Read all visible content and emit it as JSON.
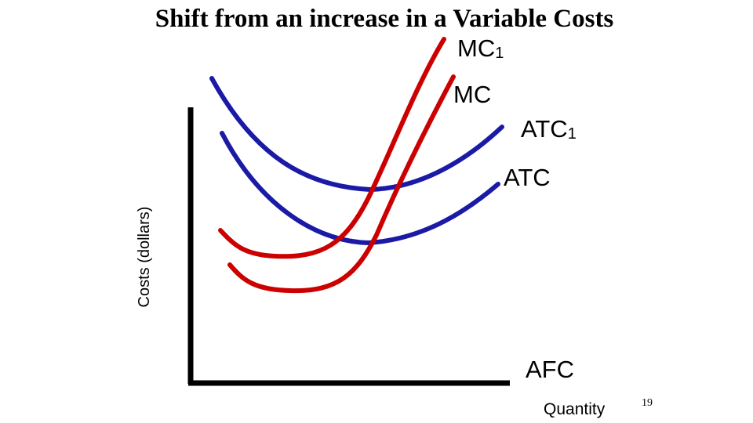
{
  "title": "Shift from an increase in a Variable  Costs",
  "y_axis_label": "Costs (dollars)",
  "x_axis_label": "Quantity",
  "page_number": "19",
  "curves": {
    "mc1": {
      "label": "MC",
      "subscript": "1",
      "color": "#cc0000"
    },
    "mc": {
      "label": "MC",
      "subscript": "",
      "color": "#cc0000"
    },
    "atc1": {
      "label": "ATC",
      "subscript": "1",
      "color": "#1a1aa6"
    },
    "atc": {
      "label": "ATC",
      "subscript": "",
      "color": "#1a1aa6"
    },
    "afc": {
      "label": "AFC",
      "subscript": ""
    }
  },
  "colors": {
    "cost_curve_red": "#cc0000",
    "cost_curve_blue": "#1a1aa6",
    "axis": "#000000"
  }
}
